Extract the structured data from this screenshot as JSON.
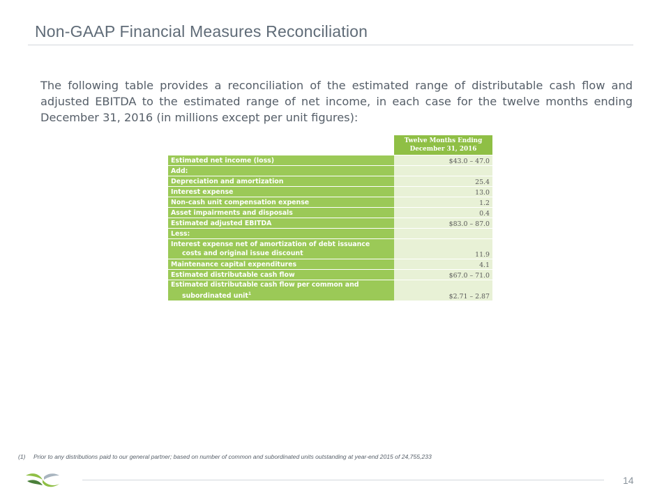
{
  "slide": {
    "title": "Non-GAAP Financial Measures Reconciliation",
    "intro": "The following table provides a reconciliation of the estimated range of distributable cash flow and adjusted EBITDA to the estimated range of net income, in each case for the twelve months ending December 31, 2016 (in millions except per unit figures):",
    "page_number": "14",
    "logo": "company-logo-icon"
  },
  "table": {
    "period_header_line1": "Twelve Months Ending",
    "period_header_line2": "December 31, 2016",
    "rows": [
      {
        "label": "Estimated net income (loss)",
        "value": "$43.0 – 47.0"
      },
      {
        "label": "Add:",
        "value": ""
      },
      {
        "label": "Depreciation and amortization",
        "value": "25.4"
      },
      {
        "label": "Interest expense",
        "value": "13.0"
      },
      {
        "label": "Non-cash unit compensation expense",
        "value": "1.2"
      },
      {
        "label": "Asset impairments and disposals",
        "value": "0.4"
      },
      {
        "label": "Estimated adjusted EBITDA",
        "value": "$83.0 – 87.0"
      },
      {
        "label": "Less:",
        "value": ""
      },
      {
        "label": "Interest expense net of amortization of debt issuance",
        "label_cont": "costs and original issue discount",
        "value": "11.9"
      },
      {
        "label": "Maintenance capital expenditures",
        "value": "4.1"
      },
      {
        "label": "Estimated distributable cash flow",
        "value": "$67.0 – 71.0"
      },
      {
        "label": "Estimated distributable cash flow per common and",
        "label_cont": "subordinated unit",
        "label_sup": "1",
        "value": "$2.71 – 2.87"
      }
    ]
  },
  "footnote": {
    "number": "(1)",
    "text": "Prior to any distributions paid to our general partner; based on number of common and subordinated units outstanding at year-end 2015 of 24,755,233"
  },
  "colors": {
    "header_green": "#8fbf45",
    "label_green": "#9bc957",
    "value_bg": "#e8f1d6",
    "title_gray": "#5f6b77"
  }
}
